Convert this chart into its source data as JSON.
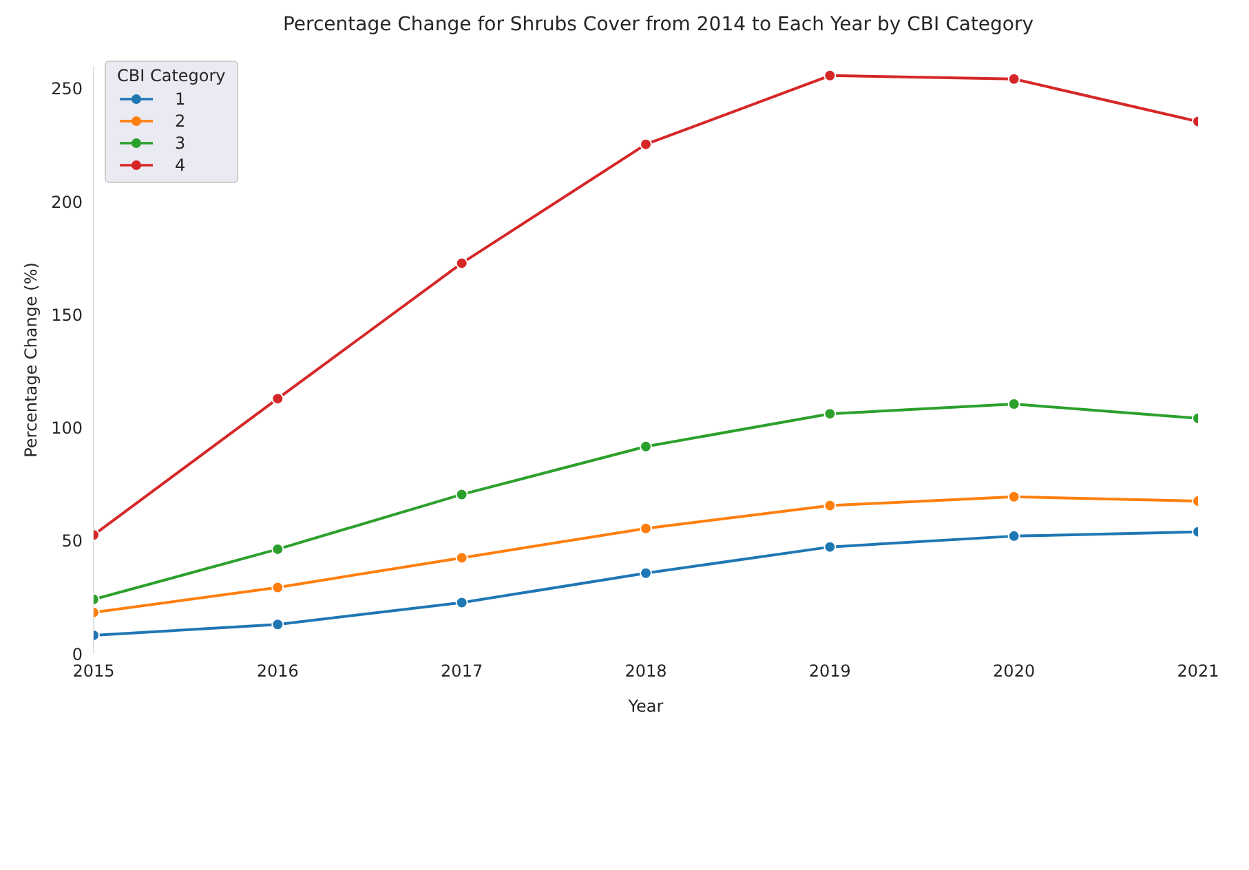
{
  "chart_data": {
    "type": "line",
    "title": "Percentage Change for Shrubs Cover from 2014 to Each Year by CBI Category",
    "xlabel": "Year",
    "ylabel": "Percentage Change (%)",
    "legend_title": "CBI Category",
    "x": [
      2015,
      2016,
      2017,
      2018,
      2019,
      2020,
      2021
    ],
    "series": [
      {
        "name": "1",
        "color": "#1f77b4",
        "values": [
          8.2,
          13,
          22.7,
          35.7,
          47.3,
          52.1,
          54
        ]
      },
      {
        "name": "2",
        "color": "#ff7f0e",
        "values": [
          18.3,
          29.4,
          42.5,
          55.5,
          65.6,
          69.5,
          67.6
        ]
      },
      {
        "name": "3",
        "color": "#2ca02c",
        "values": [
          24.1,
          46.3,
          70.5,
          91.7,
          106.2,
          110.5,
          104.2
        ]
      },
      {
        "name": "4",
        "color": "#d62728",
        "values": [
          52.6,
          112.9,
          172.8,
          225.4,
          255.8,
          254.3,
          235.5
        ]
      }
    ],
    "xlim": [
      2015,
      2021
    ],
    "xticks": [
      2015,
      2016,
      2017,
      2018,
      2019,
      2020,
      2021
    ],
    "ylim": [
      0,
      260
    ],
    "yticks": [
      0,
      50,
      100,
      150,
      200,
      250
    ],
    "grid": false,
    "legend": "top left",
    "marker": "circle",
    "line_style": "solid"
  }
}
